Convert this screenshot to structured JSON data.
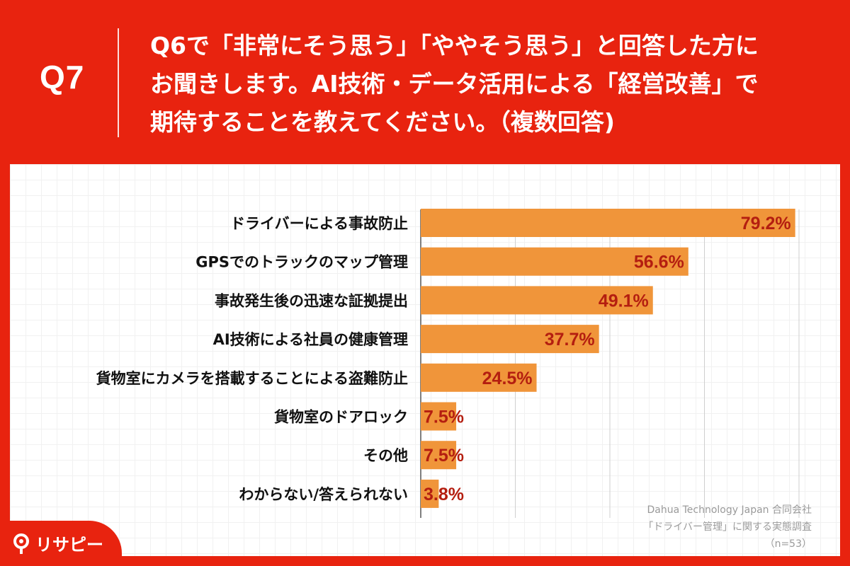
{
  "question": {
    "number": "Q7",
    "lines": [
      "Q6で「非常にそう思う」「ややそう思う」と回答した方に",
      "お聞きします。AI技術・データ活用による「経営改善」で",
      "期待することを教えてください。（複数回答)"
    ]
  },
  "chart_data": {
    "type": "bar",
    "orientation": "horizontal",
    "categories": [
      "ドライバーによる事故防止",
      "GPSでのトラックのマップ管理",
      "事故発生後の迅速な証拠提出",
      "AI技術による社員の健康管理",
      "貨物室にカメラを搭載することによる盗難防止",
      "貨物室のドアロック",
      "その他",
      "わからない/答えられない"
    ],
    "values": [
      79.2,
      56.6,
      49.1,
      37.7,
      24.5,
      7.5,
      7.5,
      3.8
    ],
    "value_labels": [
      "79.2%",
      "56.6%",
      "49.1%",
      "37.7%",
      "24.5%",
      "7.5%",
      "7.5%",
      "3.8%"
    ],
    "xlim": [
      0,
      80
    ],
    "gridlines_at": [
      0,
      20,
      40,
      60,
      80
    ],
    "grid": true,
    "bar_color": "#f0953a",
    "value_label_color": "#b41e10"
  },
  "source": {
    "company": "Dahua Technology Japan 合同会社",
    "survey": "「ドライバー管理」に関する実態調査",
    "sample": "（n=53）"
  },
  "logo": {
    "text": "リサピー",
    "icon": "magnifier-pin-icon"
  },
  "colors": {
    "brand_red": "#e8230f",
    "bar_orange": "#f0953a"
  }
}
